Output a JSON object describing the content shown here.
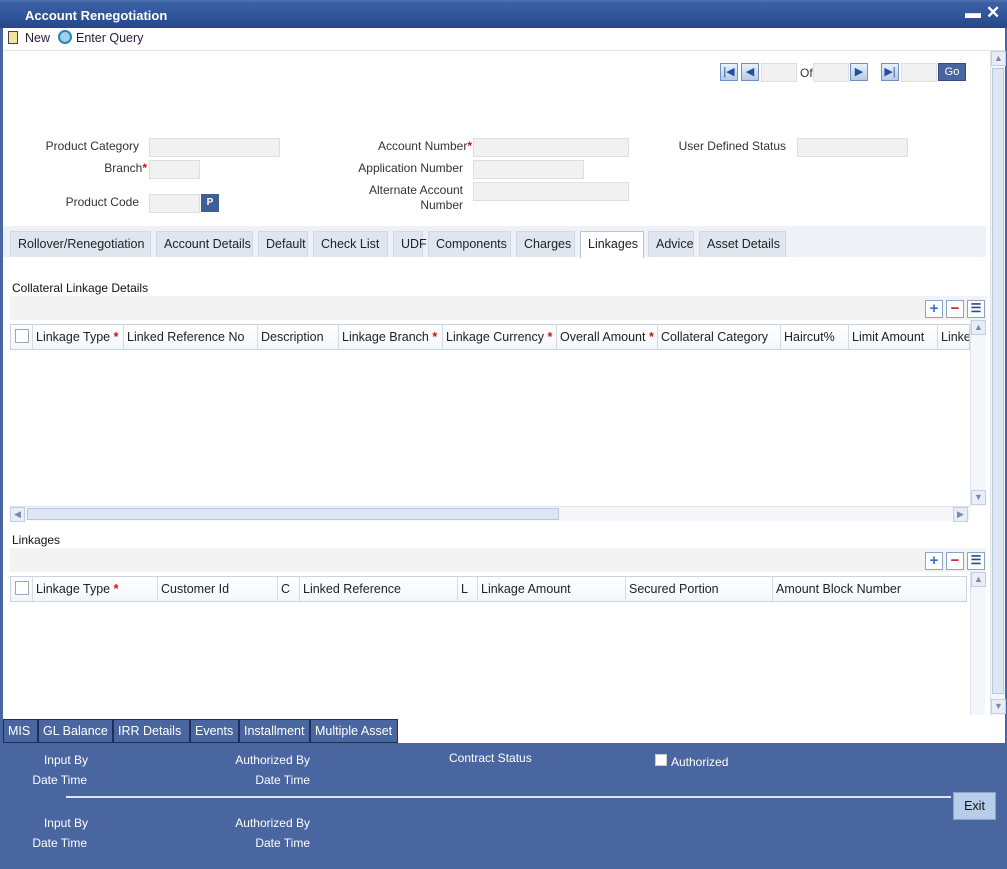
{
  "window": {
    "title": "Account Renegotiation",
    "minimize_icon": "minimize-icon",
    "close_icon": "close-icon"
  },
  "toolbar": {
    "new_label": "New",
    "enter_query_label": "Enter Query"
  },
  "pager": {
    "of_label": "Of",
    "go_label": "Go"
  },
  "form": {
    "product_category": {
      "label": "Product Category",
      "value": ""
    },
    "branch": {
      "label": "Branch",
      "value": ""
    },
    "product_code": {
      "label": "Product Code",
      "value": "",
      "lov": "P"
    },
    "account_number": {
      "label": "Account Number",
      "value": ""
    },
    "application_number": {
      "label": "Application Number",
      "value": ""
    },
    "alternate_account_number": {
      "label1": "Alternate Account",
      "label2": "Number",
      "value": ""
    },
    "user_defined_status": {
      "label": "User Defined Status",
      "value": ""
    },
    "required_mark": "*"
  },
  "tabs": [
    "Rollover/Renegotiation",
    "Account Details",
    "Default",
    "Check List",
    "UDF",
    "Components",
    "Charges",
    "Linkages",
    "Advice",
    "Asset Details"
  ],
  "active_tab": "Linkages",
  "collateral": {
    "title": "Collateral Linkage Details",
    "columns": [
      {
        "label": "Linkage Type",
        "req": true
      },
      {
        "label": "Linked Reference No"
      },
      {
        "label": "Description"
      },
      {
        "label": "Linkage Branch",
        "req": true
      },
      {
        "label": "Linkage Currency",
        "req": true
      },
      {
        "label": "Overall Amount",
        "req": true
      },
      {
        "label": "Collateral Category"
      },
      {
        "label": "Haircut%"
      },
      {
        "label": "Limit Amount"
      },
      {
        "label": "Linke"
      }
    ],
    "rows": []
  },
  "linkages": {
    "title": "Linkages",
    "columns": [
      {
        "label": "Linkage Type",
        "req": true
      },
      {
        "label": "Customer Id"
      },
      {
        "label": "C"
      },
      {
        "label": "Linked Reference"
      },
      {
        "label": "L"
      },
      {
        "label": "Linkage Amount"
      },
      {
        "label": "Secured Portion"
      },
      {
        "label": "Amount Block Number"
      }
    ],
    "rows": []
  },
  "bottom_tabs": [
    "MIS",
    "GL Balance",
    "IRR Details",
    "Events",
    "Installment",
    "Multiple Asset"
  ],
  "footer": {
    "input_by": "Input By",
    "date_time": "Date Time",
    "authorized_by": "Authorized By",
    "contract_status": "Contract Status",
    "authorized": "Authorized",
    "authorized_checked": false,
    "exit": "Exit"
  },
  "colors": {
    "title_bar": "#24488a",
    "footer": "#4a66a0"
  }
}
